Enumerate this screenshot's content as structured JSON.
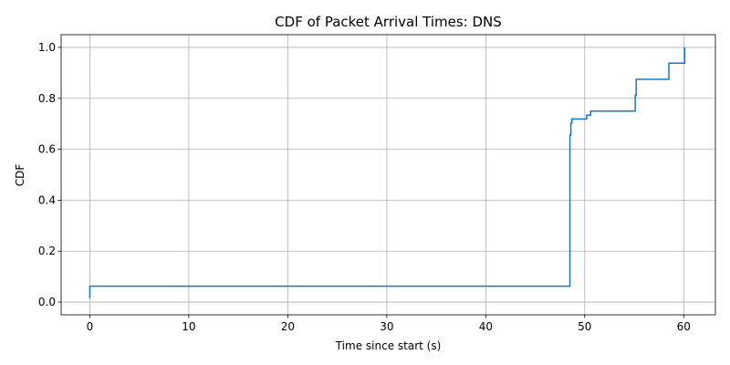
{
  "chart_data": {
    "type": "line",
    "title": "CDF of Packet Arrival Times: DNS",
    "xlabel": "Time since start (s)",
    "ylabel": "CDF",
    "xlim": [
      -2.9,
      63.2
    ],
    "ylim": [
      -0.05,
      1.05
    ],
    "xticks": [
      0,
      10,
      20,
      30,
      40,
      50,
      60
    ],
    "yticks": [
      0.0,
      0.2,
      0.4,
      0.6,
      0.8,
      1.0
    ],
    "xtick_labels": [
      "0",
      "10",
      "20",
      "30",
      "40",
      "50",
      "60"
    ],
    "ytick_labels": [
      "0.0",
      "0.2",
      "0.4",
      "0.6",
      "0.8",
      "1.0"
    ],
    "grid": true,
    "step": "post",
    "series": [
      {
        "color": "#1f77b4",
        "x": [
          0.0,
          0.0,
          48.5,
          48.5,
          48.6,
          48.6,
          48.7,
          50.2,
          50.6,
          55.1,
          55.2,
          58.5,
          60.1
        ],
        "y": [
          0.016,
          0.0625,
          0.594,
          0.656,
          0.672,
          0.703,
          0.719,
          0.734,
          0.75,
          0.812,
          0.875,
          0.938,
          1.0
        ]
      }
    ]
  }
}
